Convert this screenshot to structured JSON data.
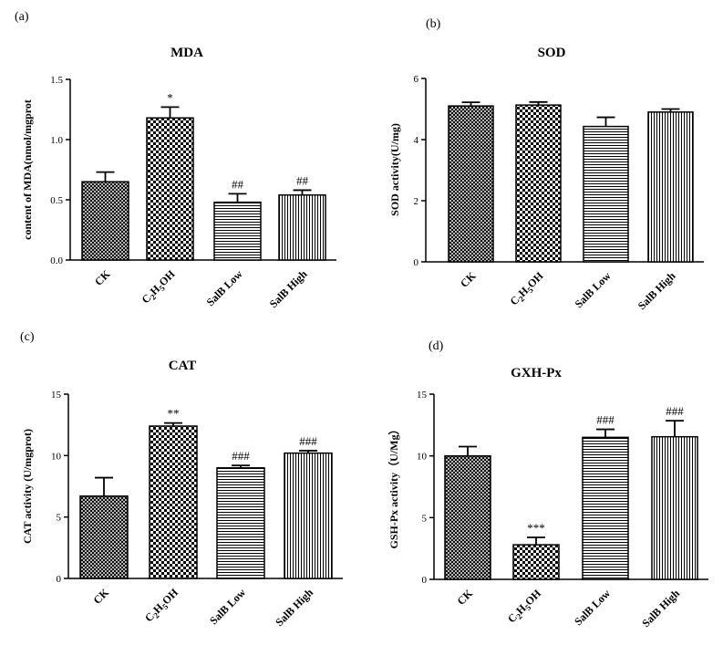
{
  "colors": {
    "ink": "#000000",
    "background": "#ffffff"
  },
  "chart_data": [
    {
      "panel": "(a)",
      "type": "bar",
      "title": "MDA",
      "xlabel": "",
      "ylabel": "content of MDA(nmol/mgprot",
      "ylim": [
        0,
        1.5
      ],
      "yticks": [
        "0.0",
        "0.5",
        "1.0",
        "1.5"
      ],
      "categories": [
        "CK",
        "C2H5OH",
        "SalB Low",
        "SalB High"
      ],
      "values": [
        0.65,
        1.18,
        0.48,
        0.54
      ],
      "errors": [
        0.08,
        0.09,
        0.07,
        0.04
      ],
      "annotations": [
        "",
        "*",
        "##",
        "##"
      ],
      "patterns": [
        "crosshatch",
        "checker",
        "hlines",
        "vlines"
      ]
    },
    {
      "panel": "(b)",
      "type": "bar",
      "title": "SOD",
      "xlabel": "",
      "ylabel": "SOD activity(U/mg)",
      "ylim": [
        0,
        6
      ],
      "yticks": [
        "0",
        "2",
        "4",
        "6"
      ],
      "categories": [
        "CK",
        "C2H5OH",
        "SalB Low",
        "SalB High"
      ],
      "values": [
        5.1,
        5.13,
        4.43,
        4.9
      ],
      "errors": [
        0.12,
        0.1,
        0.3,
        0.1
      ],
      "annotations": [
        "",
        "",
        "",
        ""
      ],
      "patterns": [
        "crosshatch",
        "checker",
        "hlines",
        "vlines"
      ]
    },
    {
      "panel": "(c)",
      "type": "bar",
      "title": "CAT",
      "xlabel": "",
      "ylabel": "CAT activity (U/mgprot)",
      "ylim": [
        0,
        15
      ],
      "yticks": [
        "0",
        "5",
        "10",
        "15"
      ],
      "categories": [
        "CK",
        "C2H5OH",
        "SalB Low",
        "SalB High"
      ],
      "values": [
        6.7,
        12.4,
        9.0,
        10.2
      ],
      "errors": [
        1.5,
        0.25,
        0.2,
        0.2
      ],
      "annotations": [
        "",
        "**",
        "###",
        "###"
      ],
      "patterns": [
        "crosshatch",
        "checker",
        "hlines",
        "vlines"
      ]
    },
    {
      "panel": "(d)",
      "type": "bar",
      "title": "GXH-Px",
      "xlabel": "",
      "ylabel": "GSH-Px activity（U/Mg）",
      "ylim": [
        0,
        15
      ],
      "yticks": [
        "0",
        "5",
        "10",
        "15"
      ],
      "categories": [
        "CK",
        "C2H5OH",
        "SalB Low",
        "SalB High"
      ],
      "values": [
        10.0,
        2.8,
        11.5,
        11.55
      ],
      "errors": [
        0.75,
        0.6,
        0.65,
        1.3
      ],
      "annotations": [
        "",
        "***",
        "###",
        "###"
      ],
      "patterns": [
        "crosshatch",
        "checker",
        "hlines",
        "vlines"
      ]
    }
  ]
}
